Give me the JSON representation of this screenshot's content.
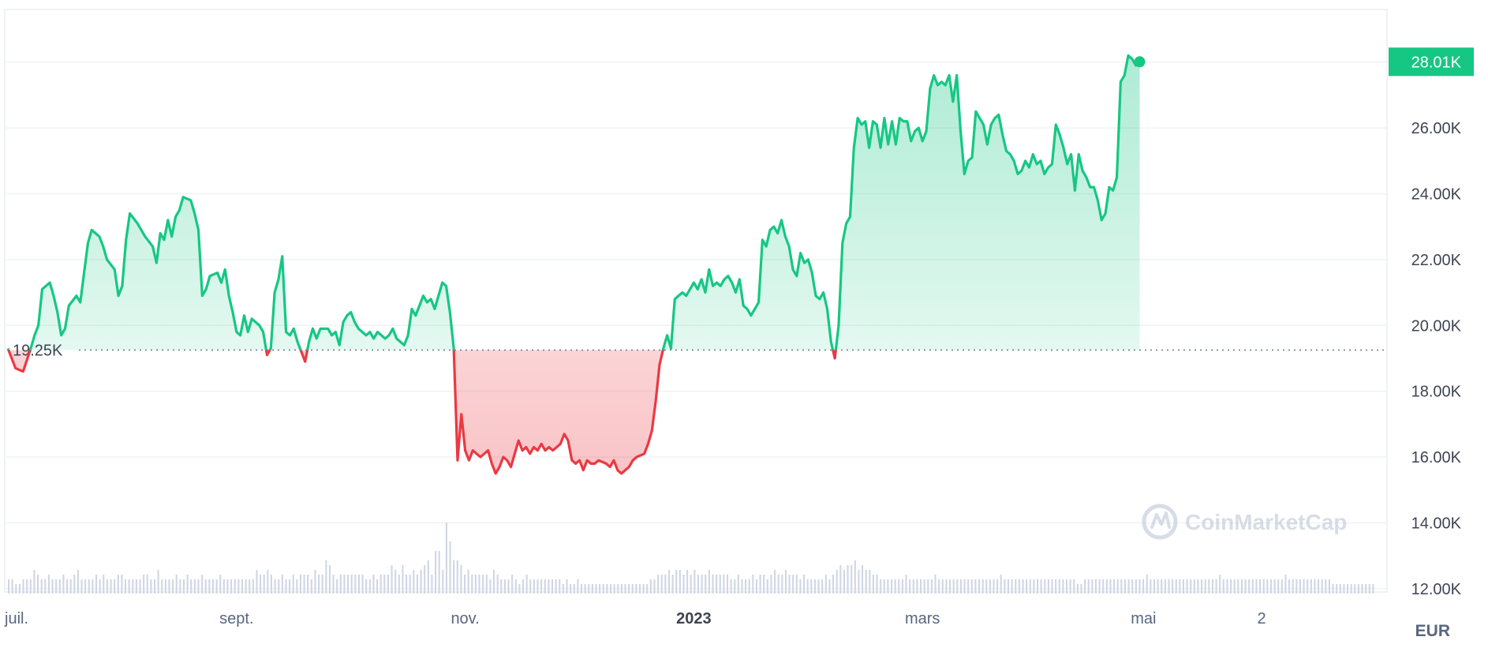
{
  "chart_data": {
    "type": "line",
    "currency": "EUR",
    "baseline": {
      "value": 19250,
      "label": "19.25K"
    },
    "current": {
      "value": 28010,
      "label": "28.01K"
    },
    "watermark": "CoinMarketCap",
    "ylim": [
      11900,
      29600
    ],
    "yticks": [
      {
        "value": 12000,
        "label": "12.00K"
      },
      {
        "value": 14000,
        "label": "14.00K"
      },
      {
        "value": 16000,
        "label": "16.00K"
      },
      {
        "value": 18000,
        "label": "18.00K"
      },
      {
        "value": 20000,
        "label": "20.00K"
      },
      {
        "value": 22000,
        "label": "22.00K"
      },
      {
        "value": 24000,
        "label": "24.00K"
      },
      {
        "value": 26000,
        "label": "26.00K"
      }
    ],
    "xticks": [
      {
        "label": "juil.",
        "x": 0,
        "bold": false
      },
      {
        "label": "sept.",
        "x": 60,
        "bold": false
      },
      {
        "label": "nov.",
        "x": 120,
        "bold": false
      },
      {
        "label": "2023",
        "x": 180,
        "bold": true
      },
      {
        "label": "mars",
        "x": 240,
        "bold": false
      },
      {
        "label": "mai",
        "x": 298,
        "bold": false
      },
      {
        "label": "2",
        "x": 329,
        "bold": false
      }
    ],
    "xlim": [
      0,
      359
    ],
    "grid": true,
    "colors": {
      "up": "#16c784",
      "down": "#ea3943",
      "volume": "#cfd6e4",
      "grid": "#eff2f5",
      "axis_text": "#58667e"
    },
    "price_points": [
      [
        0,
        19300
      ],
      [
        2,
        18700
      ],
      [
        4,
        18600
      ],
      [
        6,
        19300
      ],
      [
        7,
        19700
      ],
      [
        8,
        20000
      ],
      [
        9,
        21100
      ],
      [
        11,
        21300
      ],
      [
        12,
        20900
      ],
      [
        13,
        20400
      ],
      [
        14,
        19700
      ],
      [
        15,
        19900
      ],
      [
        16,
        20600
      ],
      [
        18,
        20900
      ],
      [
        19,
        20700
      ],
      [
        20,
        21600
      ],
      [
        21,
        22500
      ],
      [
        22,
        22900
      ],
      [
        24,
        22700
      ],
      [
        25,
        22400
      ],
      [
        26,
        22000
      ],
      [
        28,
        21700
      ],
      [
        29,
        20900
      ],
      [
        30,
        21200
      ],
      [
        31,
        22600
      ],
      [
        32,
        23400
      ],
      [
        34,
        23100
      ],
      [
        36,
        22700
      ],
      [
        38,
        22400
      ],
      [
        39,
        21900
      ],
      [
        40,
        22800
      ],
      [
        41,
        22600
      ],
      [
        42,
        23200
      ],
      [
        43,
        22700
      ],
      [
        44,
        23300
      ],
      [
        45,
        23500
      ],
      [
        46,
        23900
      ],
      [
        48,
        23800
      ],
      [
        49,
        23400
      ],
      [
        50,
        22900
      ],
      [
        51,
        20900
      ],
      [
        52,
        21100
      ],
      [
        53,
        21500
      ],
      [
        55,
        21600
      ],
      [
        56,
        21300
      ],
      [
        57,
        21700
      ],
      [
        58,
        20900
      ],
      [
        59,
        20400
      ],
      [
        60,
        19800
      ],
      [
        61,
        19700
      ],
      [
        62,
        20300
      ],
      [
        63,
        19800
      ],
      [
        64,
        20200
      ],
      [
        66,
        20000
      ],
      [
        67,
        19800
      ],
      [
        68,
        19100
      ],
      [
        69,
        19300
      ],
      [
        70,
        21000
      ],
      [
        71,
        21400
      ],
      [
        72,
        22100
      ],
      [
        73,
        19800
      ],
      [
        74,
        19700
      ],
      [
        75,
        19900
      ],
      [
        76,
        19500
      ],
      [
        77,
        19200
      ],
      [
        78,
        18900
      ],
      [
        79,
        19500
      ],
      [
        80,
        19900
      ],
      [
        81,
        19600
      ],
      [
        82,
        19900
      ],
      [
        84,
        19900
      ],
      [
        85,
        19700
      ],
      [
        86,
        19800
      ],
      [
        87,
        19400
      ],
      [
        88,
        20100
      ],
      [
        89,
        20300
      ],
      [
        90,
        20400
      ],
      [
        91,
        20100
      ],
      [
        92,
        19900
      ],
      [
        93,
        19800
      ],
      [
        94,
        19700
      ],
      [
        95,
        19800
      ],
      [
        96,
        19600
      ],
      [
        97,
        19800
      ],
      [
        98,
        19700
      ],
      [
        99,
        19600
      ],
      [
        100,
        19700
      ],
      [
        101,
        19900
      ],
      [
        102,
        19600
      ],
      [
        103,
        19500
      ],
      [
        104,
        19400
      ],
      [
        105,
        19700
      ],
      [
        106,
        20500
      ],
      [
        107,
        20300
      ],
      [
        108,
        20600
      ],
      [
        109,
        20900
      ],
      [
        110,
        20700
      ],
      [
        111,
        20800
      ],
      [
        112,
        20500
      ],
      [
        113,
        20900
      ],
      [
        114,
        21300
      ],
      [
        115,
        21200
      ],
      [
        116,
        20400
      ],
      [
        117,
        19300
      ],
      [
        118,
        15900
      ],
      [
        119,
        17300
      ],
      [
        120,
        16200
      ],
      [
        121,
        15900
      ],
      [
        122,
        16200
      ],
      [
        124,
        16000
      ],
      [
        126,
        16200
      ],
      [
        127,
        15800
      ],
      [
        128,
        15500
      ],
      [
        129,
        15700
      ],
      [
        130,
        16000
      ],
      [
        131,
        15900
      ],
      [
        132,
        15700
      ],
      [
        133,
        16100
      ],
      [
        134,
        16500
      ],
      [
        135,
        16200
      ],
      [
        136,
        16300
      ],
      [
        137,
        16100
      ],
      [
        138,
        16300
      ],
      [
        139,
        16200
      ],
      [
        140,
        16400
      ],
      [
        141,
        16200
      ],
      [
        142,
        16300
      ],
      [
        143,
        16200
      ],
      [
        144,
        16300
      ],
      [
        145,
        16400
      ],
      [
        146,
        16700
      ],
      [
        147,
        16500
      ],
      [
        148,
        15900
      ],
      [
        149,
        15800
      ],
      [
        150,
        15900
      ],
      [
        151,
        15600
      ],
      [
        152,
        15900
      ],
      [
        153,
        15800
      ],
      [
        154,
        15800
      ],
      [
        155,
        15900
      ],
      [
        157,
        15800
      ],
      [
        158,
        15700
      ],
      [
        159,
        15900
      ],
      [
        160,
        15600
      ],
      [
        161,
        15500
      ],
      [
        162,
        15600
      ],
      [
        163,
        15700
      ],
      [
        164,
        15900
      ],
      [
        165,
        16000
      ],
      [
        167,
        16100
      ],
      [
        168,
        16400
      ],
      [
        169,
        16800
      ],
      [
        170,
        17700
      ],
      [
        171,
        18800
      ],
      [
        172,
        19300
      ],
      [
        173,
        19700
      ],
      [
        174,
        19300
      ],
      [
        175,
        20800
      ],
      [
        176,
        20900
      ],
      [
        177,
        21000
      ],
      [
        178,
        20900
      ],
      [
        179,
        21100
      ],
      [
        180,
        21300
      ],
      [
        181,
        21100
      ],
      [
        182,
        21400
      ],
      [
        183,
        21000
      ],
      [
        184,
        21700
      ],
      [
        185,
        21200
      ],
      [
        186,
        21300
      ],
      [
        187,
        21200
      ],
      [
        188,
        21400
      ],
      [
        189,
        21500
      ],
      [
        190,
        21300
      ],
      [
        191,
        21000
      ],
      [
        192,
        21400
      ],
      [
        193,
        20600
      ],
      [
        194,
        20500
      ],
      [
        195,
        20300
      ],
      [
        196,
        20500
      ],
      [
        197,
        20700
      ],
      [
        198,
        22600
      ],
      [
        199,
        22400
      ],
      [
        200,
        22900
      ],
      [
        201,
        23000
      ],
      [
        202,
        22800
      ],
      [
        203,
        23200
      ],
      [
        204,
        22700
      ],
      [
        205,
        22400
      ],
      [
        206,
        21700
      ],
      [
        207,
        21500
      ],
      [
        208,
        22200
      ],
      [
        209,
        21900
      ],
      [
        210,
        22000
      ],
      [
        211,
        21600
      ],
      [
        212,
        20900
      ],
      [
        213,
        20800
      ],
      [
        214,
        21000
      ],
      [
        215,
        20500
      ],
      [
        216,
        19500
      ],
      [
        217,
        19000
      ],
      [
        218,
        20000
      ],
      [
        219,
        22500
      ],
      [
        220,
        23100
      ],
      [
        221,
        23300
      ],
      [
        222,
        25400
      ],
      [
        223,
        26300
      ],
      [
        224,
        26100
      ],
      [
        225,
        26200
      ],
      [
        226,
        25400
      ],
      [
        227,
        26200
      ],
      [
        228,
        26100
      ],
      [
        229,
        25400
      ],
      [
        230,
        26300
      ],
      [
        231,
        25500
      ],
      [
        232,
        26200
      ],
      [
        233,
        25500
      ],
      [
        234,
        26300
      ],
      [
        235,
        26200
      ],
      [
        236,
        26200
      ],
      [
        237,
        25600
      ],
      [
        238,
        25900
      ],
      [
        239,
        26000
      ],
      [
        240,
        25600
      ],
      [
        241,
        25900
      ],
      [
        242,
        27200
      ],
      [
        243,
        27600
      ],
      [
        244,
        27300
      ],
      [
        245,
        27400
      ],
      [
        246,
        27300
      ],
      [
        247,
        27600
      ],
      [
        248,
        26800
      ],
      [
        249,
        27600
      ],
      [
        250,
        25900
      ],
      [
        251,
        24600
      ],
      [
        252,
        25000
      ],
      [
        253,
        25100
      ],
      [
        254,
        26500
      ],
      [
        255,
        26300
      ],
      [
        256,
        26100
      ],
      [
        257,
        25500
      ],
      [
        258,
        26100
      ],
      [
        259,
        26300
      ],
      [
        260,
        26400
      ],
      [
        261,
        25800
      ],
      [
        262,
        25300
      ],
      [
        263,
        25200
      ],
      [
        264,
        25000
      ],
      [
        265,
        24600
      ],
      [
        266,
        24700
      ],
      [
        267,
        25000
      ],
      [
        268,
        24800
      ],
      [
        269,
        25200
      ],
      [
        270,
        24900
      ],
      [
        271,
        25000
      ],
      [
        272,
        24600
      ],
      [
        273,
        24800
      ],
      [
        274,
        24900
      ],
      [
        275,
        26100
      ],
      [
        276,
        25800
      ],
      [
        277,
        25400
      ],
      [
        278,
        24900
      ],
      [
        279,
        25200
      ],
      [
        280,
        24100
      ],
      [
        281,
        25200
      ],
      [
        282,
        24700
      ],
      [
        283,
        24500
      ],
      [
        284,
        24200
      ],
      [
        285,
        24200
      ],
      [
        286,
        23800
      ],
      [
        287,
        23200
      ],
      [
        288,
        23400
      ],
      [
        289,
        24200
      ],
      [
        290,
        24100
      ],
      [
        291,
        24500
      ],
      [
        292,
        27400
      ],
      [
        293,
        27600
      ],
      [
        294,
        28200
      ],
      [
        295,
        28100
      ],
      [
        296,
        27900
      ],
      [
        297,
        28010
      ]
    ],
    "volumes": [
      0.3,
      0.3,
      0.2,
      0.2,
      0.3,
      0.3,
      0.3,
      0.5,
      0.4,
      0.3,
      0.3,
      0.4,
      0.3,
      0.3,
      0.3,
      0.4,
      0.3,
      0.3,
      0.4,
      0.5,
      0.3,
      0.3,
      0.3,
      0.3,
      0.4,
      0.3,
      0.4,
      0.3,
      0.3,
      0.3,
      0.4,
      0.4,
      0.3,
      0.3,
      0.3,
      0.3,
      0.3,
      0.4,
      0.4,
      0.3,
      0.3,
      0.5,
      0.3,
      0.3,
      0.3,
      0.3,
      0.4,
      0.3,
      0.3,
      0.4,
      0.3,
      0.3,
      0.3,
      0.4,
      0.3,
      0.3,
      0.3,
      0.3,
      0.4,
      0.3,
      0.3,
      0.3,
      0.3,
      0.3,
      0.3,
      0.3,
      0.3,
      0.3,
      0.5,
      0.4,
      0.4,
      0.5,
      0.4,
      0.3,
      0.3,
      0.4,
      0.3,
      0.3,
      0.4,
      0.3,
      0.4,
      0.4,
      0.4,
      0.3,
      0.5,
      0.4,
      0.4,
      0.7,
      0.6,
      0.4,
      0.3,
      0.4,
      0.4,
      0.4,
      0.4,
      0.4,
      0.4,
      0.4,
      0.3,
      0.3,
      0.4,
      0.3,
      0.4,
      0.4,
      0.4,
      0.6,
      0.5,
      0.4,
      0.6,
      0.4,
      0.4,
      0.5,
      0.4,
      0.5,
      0.6,
      0.7,
      0.4,
      0.9,
      0.9,
      0.5,
      1.5,
      1.1,
      0.7,
      0.7,
      0.6,
      0.4,
      0.5,
      0.4,
      0.4,
      0.4,
      0.4,
      0.4,
      0.3,
      0.5,
      0.4,
      0.3,
      0.3,
      0.3,
      0.4,
      0.3,
      0.2,
      0.3,
      0.4,
      0.3,
      0.3,
      0.3,
      0.3,
      0.3,
      0.3,
      0.3,
      0.3,
      0.3,
      0.2,
      0.3,
      0.2,
      0.2,
      0.3,
      0.2,
      0.2,
      0.2,
      0.2,
      0.2,
      0.2,
      0.2,
      0.2,
      0.2,
      0.2,
      0.2,
      0.2,
      0.2,
      0.2,
      0.2,
      0.2,
      0.2,
      0.2,
      0.2,
      0.3,
      0.3,
      0.4,
      0.4,
      0.4,
      0.5,
      0.4,
      0.5,
      0.5,
      0.4,
      0.5,
      0.4,
      0.5,
      0.4,
      0.4,
      0.4,
      0.5,
      0.4,
      0.4,
      0.4,
      0.4,
      0.4,
      0.3,
      0.3,
      0.4,
      0.3,
      0.3,
      0.3,
      0.4,
      0.3,
      0.4,
      0.4,
      0.3,
      0.4,
      0.5,
      0.4,
      0.4,
      0.5,
      0.4,
      0.4,
      0.4,
      0.3,
      0.4,
      0.3,
      0.3,
      0.3,
      0.3,
      0.3,
      0.4,
      0.3,
      0.4,
      0.5,
      0.6,
      0.5,
      0.6,
      0.6,
      0.7,
      0.5,
      0.6,
      0.5,
      0.5,
      0.4,
      0.4,
      0.3,
      0.3,
      0.3,
      0.3,
      0.3,
      0.3,
      0.3,
      0.4,
      0.3,
      0.3,
      0.3,
      0.3,
      0.3,
      0.3,
      0.3,
      0.4,
      0.3,
      0.3,
      0.3,
      0.3,
      0.3,
      0.3,
      0.3,
      0.3,
      0.3,
      0.3,
      0.3,
      0.3,
      0.3,
      0.3,
      0.3,
      0.3,
      0.3,
      0.4,
      0.3,
      0.3,
      0.3,
      0.3,
      0.3,
      0.3,
      0.3,
      0.3,
      0.3,
      0.3,
      0.3,
      0.3,
      0.3,
      0.3,
      0.3,
      0.3,
      0.3,
      0.3,
      0.3,
      0.3,
      0.2,
      0.2,
      0.3,
      0.3,
      0.3,
      0.3,
      0.3,
      0.3,
      0.3,
      0.3,
      0.3,
      0.3,
      0.3,
      0.3,
      0.3,
      0.3,
      0.3,
      0.3,
      0.3,
      0.4,
      0.3,
      0.3,
      0.3,
      0.3,
      0.3,
      0.3,
      0.3,
      0.3,
      0.3,
      0.3,
      0.3,
      0.3,
      0.3,
      0.3,
      0.3,
      0.3,
      0.3,
      0.3,
      0.3,
      0.4,
      0.3,
      0.3,
      0.3,
      0.3,
      0.3,
      0.3,
      0.3,
      0.3,
      0.3,
      0.3,
      0.3,
      0.3,
      0.3,
      0.3,
      0.3,
      0.3,
      0.3,
      0.4,
      0.3,
      0.3,
      0.3,
      0.3,
      0.3,
      0.3,
      0.3,
      0.3,
      0.3,
      0.3,
      0.3,
      0.3,
      0.2,
      0.2,
      0.2,
      0.2,
      0.2,
      0.2,
      0.2,
      0.2,
      0.2,
      0.2,
      0.2,
      0.2
    ]
  }
}
